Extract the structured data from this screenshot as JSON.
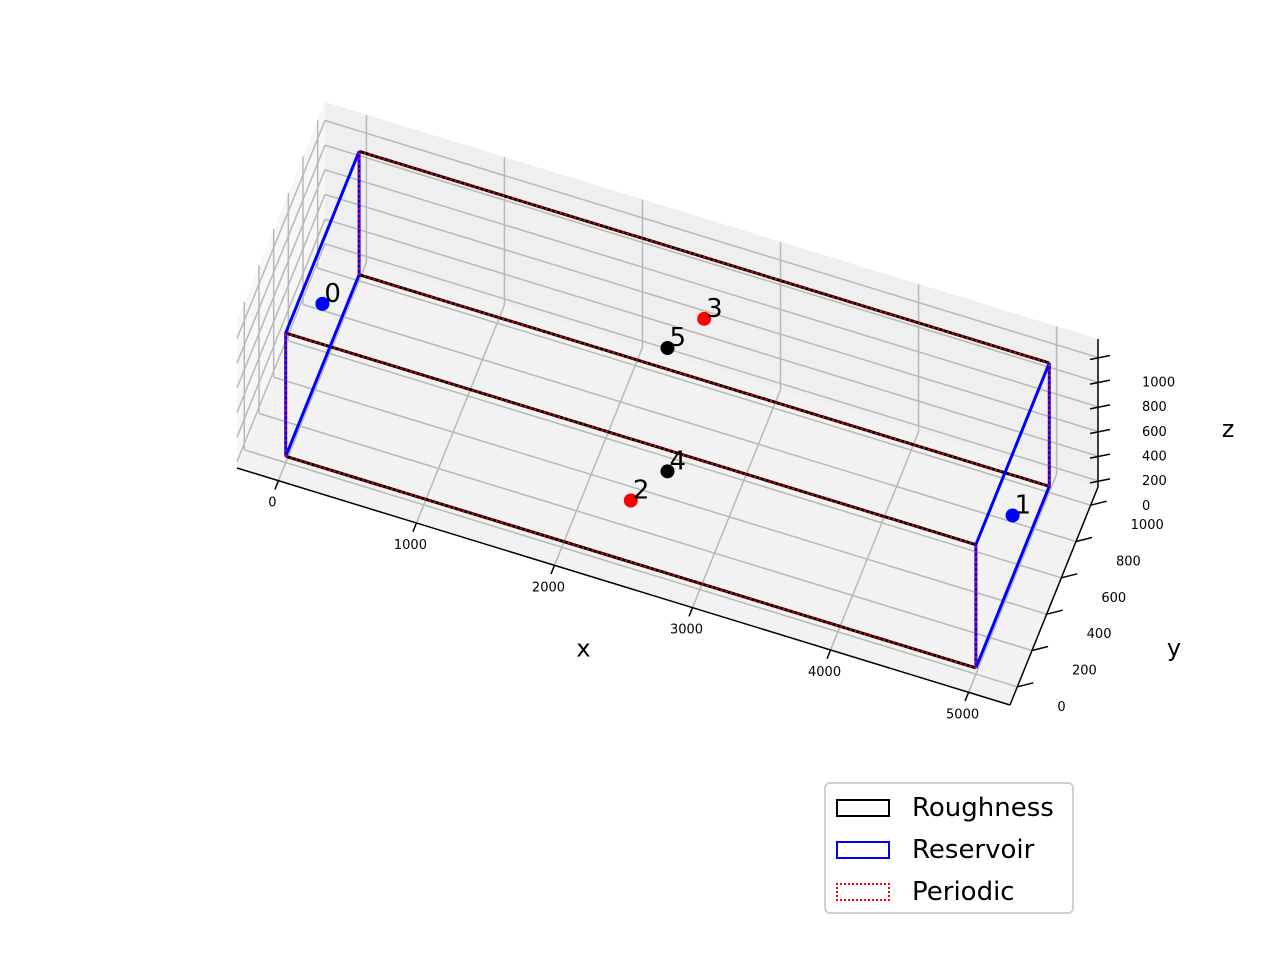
{
  "chart_data": {
    "type": "scatter3d",
    "xlabel": "x",
    "ylabel": "y",
    "zlabel": "z",
    "x_ticks": [
      "0",
      "1000",
      "2000",
      "3000",
      "4000",
      "5000"
    ],
    "y_ticks": [
      "0",
      "200",
      "400",
      "600",
      "800",
      "1000"
    ],
    "z_ticks": [
      "0",
      "200",
      "400",
      "600",
      "800",
      "1000"
    ],
    "xlim": [
      -300,
      5300
    ],
    "ylim": [
      -100,
      1100
    ],
    "zlim": [
      -50,
      1150
    ],
    "grid": true,
    "box": {
      "x": [
        0,
        5000
      ],
      "y": [
        0,
        1000
      ],
      "z": [
        0,
        1000
      ]
    },
    "points": [
      {
        "label": "0",
        "x": 0,
        "y": 500,
        "z": 500,
        "color": "#0000ff"
      },
      {
        "label": "1",
        "x": 5000,
        "y": 500,
        "z": 500,
        "color": "#0000ff"
      },
      {
        "label": "2",
        "x": 2500,
        "y": 0,
        "z": 500,
        "color": "#ff0000"
      },
      {
        "label": "3",
        "x": 2500,
        "y": 1000,
        "z": 500,
        "color": "#ff0000"
      },
      {
        "label": "4",
        "x": 2500,
        "y": 500,
        "z": 0,
        "color": "#000000"
      },
      {
        "label": "5",
        "x": 2500,
        "y": 500,
        "z": 1000,
        "color": "#000000"
      }
    ],
    "legend": {
      "position": "lower-right",
      "entries": [
        {
          "label": "Roughness",
          "color": "#000000",
          "style": "solid"
        },
        {
          "label": "Reservoir",
          "color": "#0000ff",
          "style": "solid"
        },
        {
          "label": "Periodic",
          "color": "#ff0000",
          "style": "dotted"
        }
      ]
    }
  }
}
